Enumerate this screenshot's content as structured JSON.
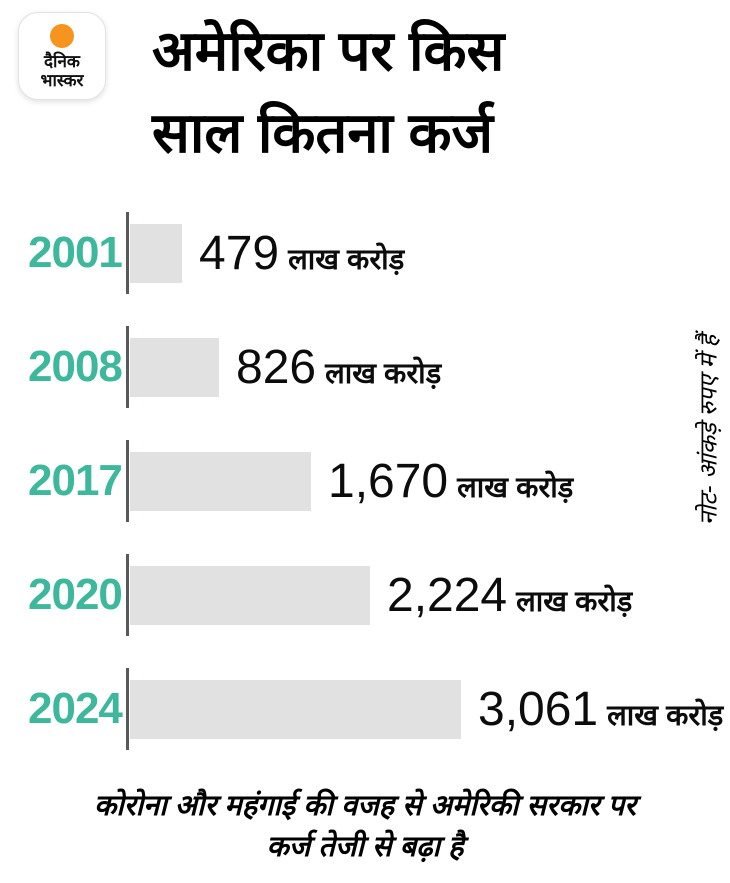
{
  "header": {
    "logo": {
      "line1": "दैनिक",
      "line2": "भास्कर",
      "dot_color": "#F7941D"
    },
    "title_line1": "अमेरिका पर किस",
    "title_line2": "साल कितना कर्ज"
  },
  "chart_data": {
    "type": "bar",
    "orientation": "horizontal",
    "title": "अमेरिका पर किस साल कितना कर्ज",
    "categories": [
      "2001",
      "2008",
      "2017",
      "2020",
      "2024"
    ],
    "values": [
      479,
      826,
      1670,
      2224,
      3061
    ],
    "value_labels": [
      "479",
      "826",
      "1,670",
      "2,224",
      "3,061"
    ],
    "unit_label": "लाख करोड़",
    "xlim": [
      0,
      3061
    ],
    "grid": false,
    "legend": false,
    "bar_color": "#e1e1e2",
    "year_label_color": "#3eb89c",
    "axis_tick_color": "#58595b",
    "value_text_color": "#0c0c0c"
  },
  "note_vertical": "नोट- आंकड़े रुपए में हैं",
  "caption": {
    "line1": "कोरोना और महंगाई की वजह से अमेरिकी सरकार पर",
    "line2": "कर्ज तेजी से बढ़ा है"
  }
}
